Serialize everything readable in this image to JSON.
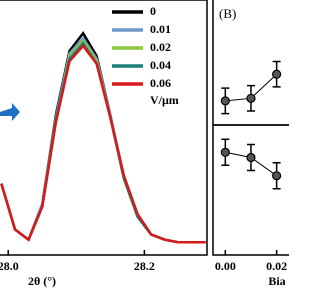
{
  "chart_data": [
    {
      "type": "line",
      "xlabel": "2θ (°)",
      "legend_unit": "V/μm",
      "x": [
        27.99,
        28.01,
        28.03,
        28.05,
        28.07,
        28.09,
        28.11,
        28.13,
        28.15,
        28.17,
        28.19,
        28.21,
        28.23,
        28.25,
        28.27,
        28.29
      ],
      "series": [
        {
          "name": "0",
          "color": "#000000",
          "values": [
            0.28,
            0.1,
            0.06,
            0.2,
            0.55,
            0.8,
            0.87,
            0.78,
            0.55,
            0.3,
            0.15,
            0.08,
            0.06,
            0.05,
            0.05,
            0.05
          ]
        },
        {
          "name": "0.01",
          "color": "#6f97c9",
          "values": [
            0.28,
            0.1,
            0.06,
            0.2,
            0.54,
            0.79,
            0.85,
            0.77,
            0.55,
            0.31,
            0.16,
            0.08,
            0.06,
            0.05,
            0.05,
            0.05
          ]
        },
        {
          "name": "0.02",
          "color": "#8dc63f",
          "values": [
            0.28,
            0.1,
            0.06,
            0.19,
            0.53,
            0.78,
            0.84,
            0.76,
            0.54,
            0.3,
            0.15,
            0.08,
            0.06,
            0.05,
            0.05,
            0.05
          ]
        },
        {
          "name": "0.04",
          "color": "#1b7f7a",
          "values": [
            0.28,
            0.1,
            0.06,
            0.19,
            0.53,
            0.77,
            0.83,
            0.75,
            0.54,
            0.3,
            0.15,
            0.08,
            0.06,
            0.05,
            0.05,
            0.05
          ]
        },
        {
          "name": "0.06",
          "color": "#d7191c",
          "values": [
            0.28,
            0.1,
            0.06,
            0.19,
            0.52,
            0.76,
            0.82,
            0.75,
            0.54,
            0.31,
            0.16,
            0.08,
            0.06,
            0.05,
            0.05,
            0.05
          ]
        }
      ],
      "xlim": [
        27.985,
        28.292
      ],
      "ylim": [
        0,
        1
      ],
      "xticks": [
        {
          "value": 28,
          "label": "28.0"
        },
        28.2
      ]
    },
    {
      "type": "scatter",
      "label": "(B)",
      "x": [
        0,
        0.01,
        0.02
      ],
      "values": [
        0.19,
        0.21,
        0.4
      ],
      "errors": [
        0.1,
        0.1,
        0.1
      ],
      "xlim": [
        -0.0048,
        0.0256
      ],
      "ylim": [
        0,
        1
      ]
    },
    {
      "type": "scatter",
      "xlabel": "Bia",
      "x": [
        0,
        0.01,
        0.02
      ],
      "values": [
        0.79,
        0.75,
        0.61
      ],
      "errors": [
        0.1,
        0.1,
        0.1
      ],
      "xlim": [
        -0.0048,
        0.0256
      ],
      "ylim": [
        0,
        1
      ],
      "xticks": [
        {
          "value": 0,
          "label": "0.00"
        },
        0.02
      ]
    }
  ]
}
